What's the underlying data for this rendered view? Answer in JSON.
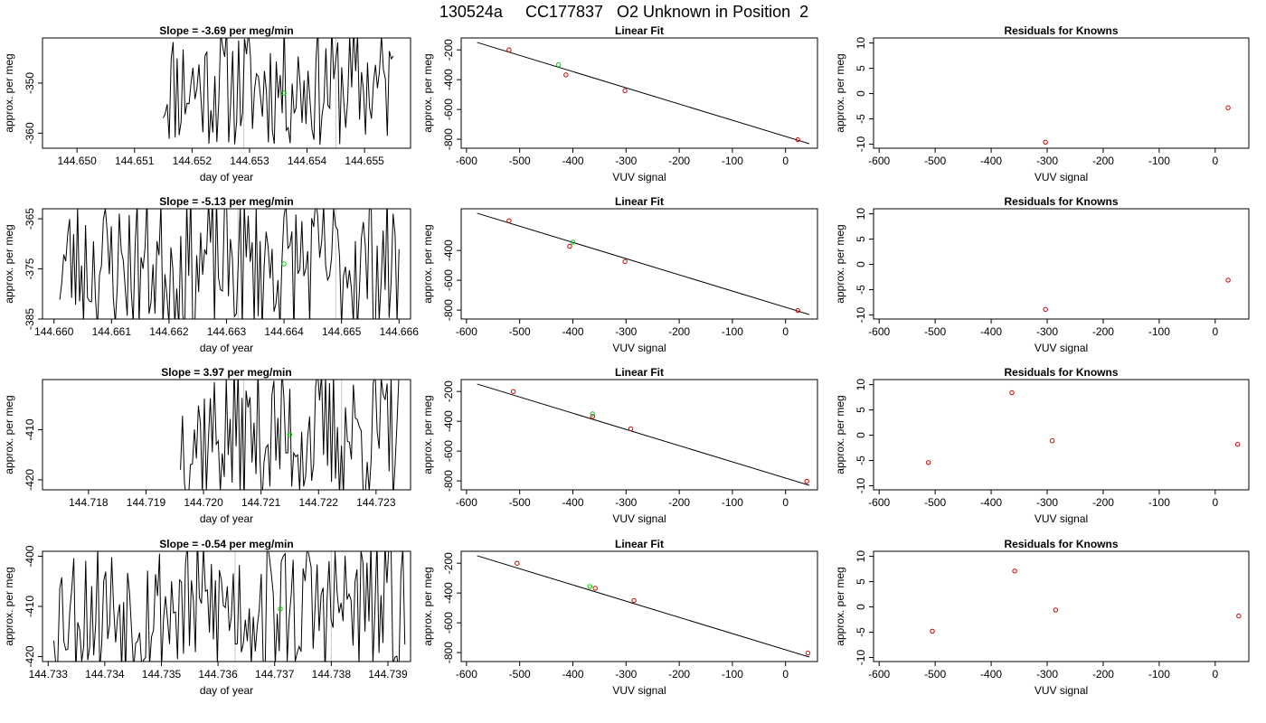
{
  "title": "130524a     CC177837   O2 Unknown in Position  2",
  "colors": {
    "known": "#cc0000",
    "unknown": "#00cc00",
    "line": "#000000",
    "marker": "#c8c8c8"
  },
  "chart_data": [
    {
      "type": "line",
      "row": 0,
      "col": 0,
      "title": "Slope =  -3.69  per meg/min",
      "xlabel": "day of year",
      "ylabel": "approx. per meg",
      "xlim": [
        144.6494,
        144.6558
      ],
      "ylim": [
        -363,
        -341
      ],
      "y_reversed": true,
      "xticks": [
        "144.650",
        "144.651",
        "144.652",
        "144.653",
        "144.654",
        "144.655"
      ],
      "xtick_values": [
        144.65,
        144.651,
        144.652,
        144.653,
        144.654,
        144.655
      ],
      "yticks": [
        "-350",
        "-360"
      ],
      "ytick_values": [
        -350,
        -360
      ],
      "series_start": 144.6515,
      "series_end": 144.6555,
      "series_min": -363,
      "series_max": -338,
      "seed": 11,
      "vlines": [
        144.6529,
        144.6545
      ],
      "unknown_point": {
        "x": 144.6536,
        "y": -352
      }
    },
    {
      "type": "scatter",
      "row": 0,
      "col": 1,
      "title": "Linear Fit",
      "xlabel": "VUV signal",
      "ylabel": "approx. per meg",
      "xlim": [
        -610,
        60
      ],
      "ylim": [
        -860,
        -120
      ],
      "y_reversed": true,
      "xticks": [
        "-600",
        "-500",
        "-400",
        "-300",
        "-200",
        "-100",
        "0"
      ],
      "xtick_values": [
        -600,
        -500,
        -400,
        -300,
        -200,
        -100,
        0
      ],
      "yticks": [
        "-200",
        "-400",
        "-600",
        "-800"
      ],
      "ytick_values": [
        -200,
        -400,
        -600,
        -800
      ],
      "fit_line": [
        [
          -580,
          -150
        ],
        [
          45,
          -830
        ]
      ],
      "known_points": [
        {
          "x": -520,
          "y": -200
        },
        {
          "x": -413,
          "y": -368
        },
        {
          "x": -302,
          "y": -474
        },
        {
          "x": 23,
          "y": -803
        }
      ],
      "unknown_point": {
        "x": -427,
        "y": -300
      }
    },
    {
      "type": "scatter",
      "row": 0,
      "col": 2,
      "title": "Residuals for Knowns",
      "xlabel": "VUV signal",
      "ylabel": "approx. per meg",
      "xlim": [
        -610,
        60
      ],
      "ylim": [
        -10.8,
        11
      ],
      "y_reversed": false,
      "xticks": [
        "-600",
        "-500",
        "-400",
        "-300",
        "-200",
        "-100",
        "0"
      ],
      "xtick_values": [
        -600,
        -500,
        -400,
        -300,
        -200,
        -100,
        0
      ],
      "yticks": [
        "-10",
        "-5",
        "0",
        "5",
        "10"
      ],
      "ytick_values": [
        -10,
        -5,
        0,
        5,
        10
      ],
      "known_points": [
        {
          "x": -303,
          "y": -9.6
        },
        {
          "x": 23,
          "y": -2.8
        }
      ]
    },
    {
      "type": "line",
      "row": 1,
      "col": 0,
      "title": "Slope =  -5.13  per meg/min",
      "xlabel": "day of year",
      "ylabel": "approx. per meg",
      "xlim": [
        144.6598,
        144.6662
      ],
      "ylim": [
        -385,
        -363
      ],
      "y_reversed": true,
      "xticks": [
        "144.660",
        "144.661",
        "144.662",
        "144.663",
        "144.664",
        "144.665",
        "144.666"
      ],
      "xtick_values": [
        144.66,
        144.661,
        144.662,
        144.663,
        144.664,
        144.665,
        144.666
      ],
      "yticks": [
        "-365",
        "-375",
        "-385"
      ],
      "ytick_values": [
        -365,
        -375,
        -385
      ],
      "series_start": 144.6601,
      "series_end": 144.666,
      "series_min": -388,
      "series_max": -360,
      "seed": 23,
      "vlines": [
        144.6632,
        144.6649
      ],
      "unknown_point": {
        "x": 144.664,
        "y": -374
      }
    },
    {
      "type": "scatter",
      "row": 1,
      "col": 1,
      "title": "Linear Fit",
      "xlabel": "VUV signal",
      "ylabel": "approx. per meg",
      "xlim": [
        -610,
        60
      ],
      "ylim": [
        -860,
        -120
      ],
      "y_reversed": true,
      "xticks": [
        "-600",
        "-500",
        "-400",
        "-300",
        "-200",
        "-100",
        "0"
      ],
      "xtick_values": [
        -600,
        -500,
        -400,
        -300,
        -200,
        -100,
        0
      ],
      "yticks": [
        "-400",
        "-600",
        "-800"
      ],
      "ytick_values": [
        -400,
        -600,
        -800
      ],
      "fit_line": [
        [
          -580,
          -150
        ],
        [
          45,
          -830
        ]
      ],
      "known_points": [
        {
          "x": -520,
          "y": -200
        },
        {
          "x": -406,
          "y": -372
        },
        {
          "x": -302,
          "y": -474
        },
        {
          "x": 23,
          "y": -803
        }
      ],
      "unknown_point": {
        "x": -400,
        "y": -344
      }
    },
    {
      "type": "scatter",
      "row": 1,
      "col": 2,
      "title": "Residuals for Knowns",
      "xlabel": "VUV signal",
      "ylabel": "approx. per meg",
      "xlim": [
        -610,
        60
      ],
      "ylim": [
        -10.8,
        11
      ],
      "y_reversed": false,
      "xticks": [
        "-600",
        "-500",
        "-400",
        "-300",
        "-200",
        "-100",
        "0"
      ],
      "xtick_values": [
        -600,
        -500,
        -400,
        -300,
        -200,
        -100,
        0
      ],
      "yticks": [
        "-10",
        "-5",
        "0",
        "5",
        "10"
      ],
      "ytick_values": [
        -10,
        -5,
        0,
        5,
        10
      ],
      "known_points": [
        {
          "x": -303,
          "y": -8.9
        },
        {
          "x": 23,
          "y": -3.1
        }
      ]
    },
    {
      "type": "line",
      "row": 2,
      "col": 0,
      "title": "Slope =  3.97  per meg/min",
      "xlabel": "day of year",
      "ylabel": "approx. per meg",
      "xlim": [
        144.7172,
        144.7236
      ],
      "ylim": [
        -422,
        -400
      ],
      "y_reversed": true,
      "xticks": [
        "144.718",
        "144.719",
        "144.720",
        "144.721",
        "144.722",
        "144.723"
      ],
      "xtick_values": [
        144.718,
        144.719,
        144.72,
        144.721,
        144.722,
        144.723
      ],
      "yticks": [
        "-410",
        "-420"
      ],
      "ytick_values": [
        -410,
        -420
      ],
      "series_start": 144.7196,
      "series_end": 144.7234,
      "series_min": -425,
      "series_max": -397,
      "seed": 37,
      "vlines": [
        144.7207,
        144.7224
      ],
      "unknown_point": {
        "x": 144.7215,
        "y": -411
      }
    },
    {
      "type": "scatter",
      "row": 2,
      "col": 1,
      "title": "Linear Fit",
      "xlabel": "VUV signal",
      "ylabel": "approx. per meg",
      "xlim": [
        -610,
        60
      ],
      "ylim": [
        -860,
        -120
      ],
      "y_reversed": true,
      "xticks": [
        "-600",
        "-500",
        "-400",
        "-300",
        "-200",
        "-100",
        "0"
      ],
      "xtick_values": [
        -600,
        -500,
        -400,
        -300,
        -200,
        -100,
        0
      ],
      "yticks": [
        "-200",
        "-400",
        "-600",
        "-800"
      ],
      "ytick_values": [
        -200,
        -400,
        -600,
        -800
      ],
      "fit_line": [
        [
          -580,
          -150
        ],
        [
          45,
          -830
        ]
      ],
      "known_points": [
        {
          "x": -512,
          "y": -200
        },
        {
          "x": -363,
          "y": -368
        },
        {
          "x": -291,
          "y": -450
        },
        {
          "x": 40,
          "y": -803
        }
      ],
      "unknown_point": {
        "x": -363,
        "y": -350
      }
    },
    {
      "type": "scatter",
      "row": 2,
      "col": 2,
      "title": "Residuals for Knowns",
      "xlabel": "VUV signal",
      "ylabel": "approx. per meg",
      "xlim": [
        -610,
        60
      ],
      "ylim": [
        -10.8,
        11
      ],
      "y_reversed": false,
      "xticks": [
        "-600",
        "-500",
        "-400",
        "-300",
        "-200",
        "-100",
        "0"
      ],
      "xtick_values": [
        -600,
        -500,
        -400,
        -300,
        -200,
        -100,
        0
      ],
      "yticks": [
        "-10",
        "-5",
        "0",
        "5",
        "10"
      ],
      "ytick_values": [
        -10,
        -5,
        0,
        5,
        10
      ],
      "known_points": [
        {
          "x": -512,
          "y": -5.4
        },
        {
          "x": -363,
          "y": 8.4
        },
        {
          "x": -291,
          "y": -1.1
        },
        {
          "x": 40,
          "y": -1.8
        }
      ]
    },
    {
      "type": "line",
      "row": 3,
      "col": 0,
      "title": "Slope =  -0.54  per meg/min",
      "xlabel": "day of year",
      "ylabel": "approx. per meg",
      "xlim": [
        144.7329,
        144.7394
      ],
      "ylim": [
        -421,
        -399
      ],
      "y_reversed": true,
      "xticks": [
        "144.733",
        "144.734",
        "144.735",
        "144.736",
        "144.737",
        "144.738",
        "144.739"
      ],
      "xtick_values": [
        144.733,
        144.734,
        144.735,
        144.736,
        144.737,
        144.738,
        144.739
      ],
      "yticks": [
        "-400",
        "-410",
        "-420"
      ],
      "ytick_values": [
        -400,
        -410,
        -420
      ],
      "series_start": 144.7331,
      "series_end": 144.7393,
      "series_min": -424,
      "series_max": -396,
      "seed": 53,
      "vlines": [
        144.7363,
        144.738
      ],
      "unknown_point": {
        "x": 144.7371,
        "y": -410.5
      }
    },
    {
      "type": "scatter",
      "row": 3,
      "col": 1,
      "title": "Linear Fit",
      "xlabel": "VUV signal",
      "ylabel": "approx. per meg",
      "xlim": [
        -610,
        60
      ],
      "ylim": [
        -860,
        -120
      ],
      "y_reversed": true,
      "xticks": [
        "-600",
        "-500",
        "-400",
        "-300",
        "-200",
        "-100",
        "0"
      ],
      "xtick_values": [
        -600,
        -500,
        -400,
        -300,
        -200,
        -100,
        0
      ],
      "yticks": [
        "-200",
        "-400",
        "-600",
        "-800"
      ],
      "ytick_values": [
        -200,
        -400,
        -600,
        -800
      ],
      "fit_line": [
        [
          -580,
          -150
        ],
        [
          45,
          -830
        ]
      ],
      "known_points": [
        {
          "x": -505,
          "y": -200
        },
        {
          "x": -358,
          "y": -368
        },
        {
          "x": -285,
          "y": -450
        },
        {
          "x": 42,
          "y": -803
        }
      ],
      "unknown_point": {
        "x": -368,
        "y": -356
      }
    },
    {
      "type": "scatter",
      "row": 3,
      "col": 2,
      "title": "Residuals for Knowns",
      "xlabel": "VUV signal",
      "ylabel": "approx. per meg",
      "xlim": [
        -610,
        60
      ],
      "ylim": [
        -10.8,
        11
      ],
      "y_reversed": false,
      "xticks": [
        "-600",
        "-500",
        "-400",
        "-300",
        "-200",
        "-100",
        "0"
      ],
      "xtick_values": [
        -600,
        -500,
        -400,
        -300,
        -200,
        -100,
        0
      ],
      "yticks": [
        "-10",
        "-5",
        "0",
        "5",
        "10"
      ],
      "ytick_values": [
        -10,
        -5,
        0,
        5,
        10
      ],
      "known_points": [
        {
          "x": -505,
          "y": -4.8
        },
        {
          "x": -358,
          "y": 7.1
        },
        {
          "x": -285,
          "y": -0.6
        },
        {
          "x": 42,
          "y": -1.8
        }
      ]
    }
  ]
}
